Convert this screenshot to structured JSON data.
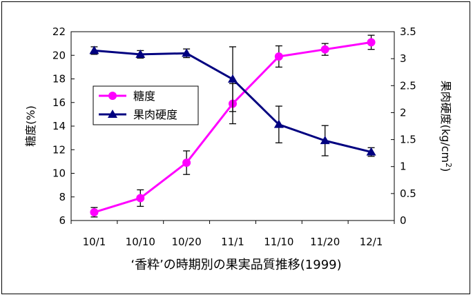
{
  "chart_data": {
    "type": "line",
    "caption": "‘香粋’の時期別の果実品質推移(1999)",
    "categories": [
      "10/1",
      "10/10",
      "10/20",
      "11/1",
      "11/10",
      "11/20",
      "12/1"
    ],
    "y_left": {
      "label": "糖度(%)",
      "range": [
        6,
        22
      ],
      "ticks": [
        "6",
        "8",
        "10",
        "12",
        "14",
        "16",
        "18",
        "20",
        "22"
      ]
    },
    "y_right": {
      "label_main": "果肉硬度(kg/cm",
      "label_sup": "2",
      "label_end": ")",
      "range": [
        0,
        3.5
      ],
      "ticks": [
        "0",
        "0.5",
        "1",
        "1.5",
        "2",
        "2.5",
        "3",
        "3.5"
      ]
    },
    "grid": false,
    "legend_placement": "upper-left inside plot",
    "series": [
      {
        "name": "糖度",
        "axis": "left",
        "marker": "circle",
        "color": "#ff00ff",
        "values": [
          6.7,
          7.9,
          10.9,
          15.9,
          19.9,
          20.5,
          21.1
        ],
        "error": [
          0.4,
          0.7,
          1.0,
          1.7,
          0.9,
          0.5,
          0.6
        ]
      },
      {
        "name": "果肉硬度",
        "axis": "right",
        "marker": "triangle",
        "color": "#000080",
        "values": [
          3.15,
          3.08,
          3.1,
          2.62,
          1.78,
          1.48,
          1.27
        ],
        "error": [
          0.07,
          0.07,
          0.08,
          0.6,
          0.34,
          0.28,
          0.08
        ]
      }
    ]
  }
}
